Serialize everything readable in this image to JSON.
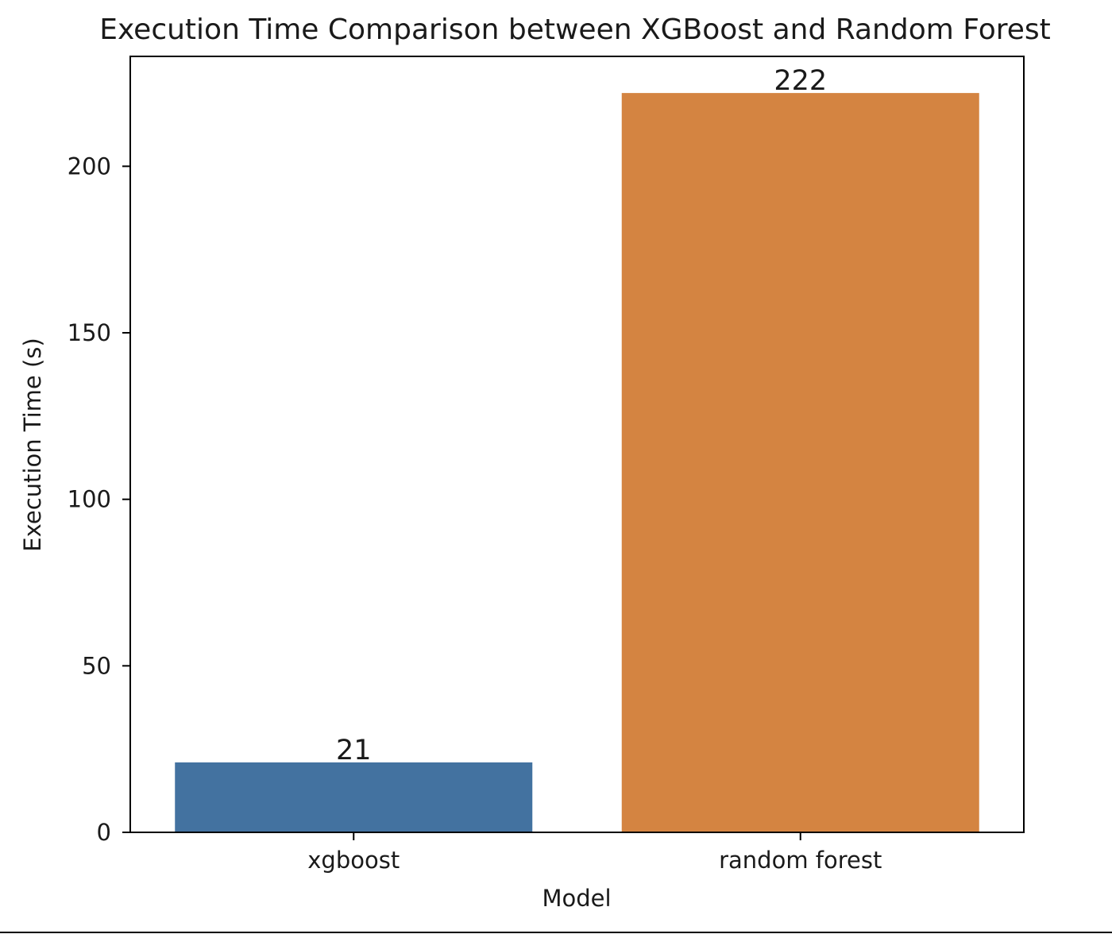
{
  "chart_data": {
    "type": "bar",
    "title": "Execution Time Comparison between XGBoost and Random Forest",
    "xlabel": "Model",
    "ylabel": "Execution Time (s)",
    "categories": [
      "xgboost",
      "random forest"
    ],
    "values": [
      21,
      222
    ],
    "data_labels": [
      "21",
      "222"
    ],
    "colors": [
      "#4372a0",
      "#d48441"
    ],
    "ylim": [
      0,
      233
    ],
    "yticks": [
      0,
      50,
      100,
      150,
      200
    ],
    "ytick_labels": [
      "0",
      "50",
      "100",
      "150",
      "200"
    ],
    "grid": false,
    "legend": false
  }
}
